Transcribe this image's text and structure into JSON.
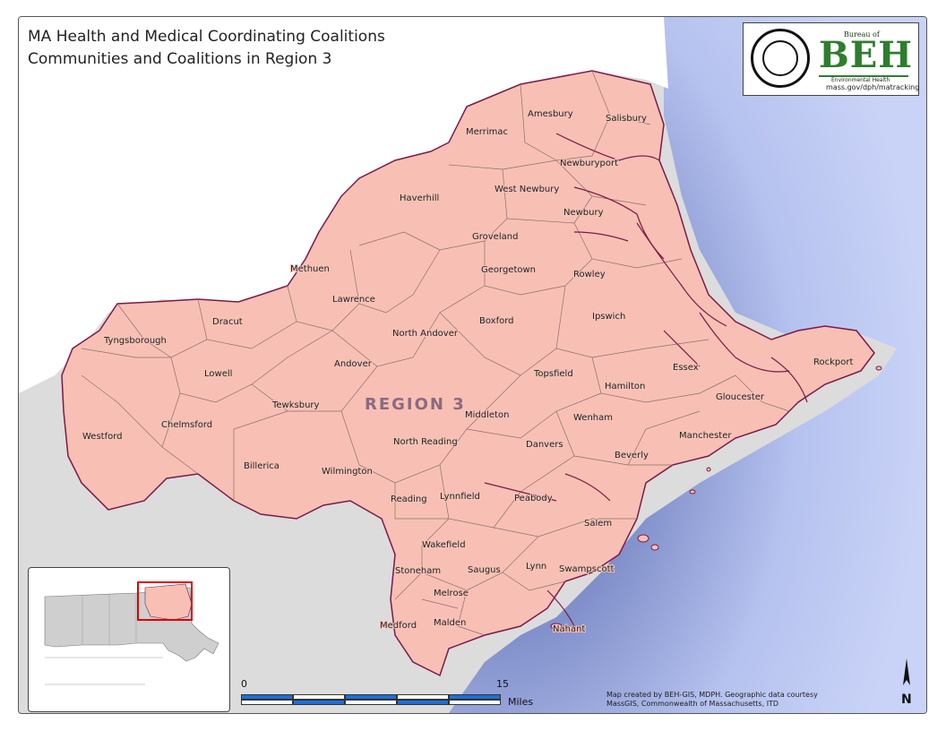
{
  "title": {
    "line1": "MA Health and Medical Coordinating Coalitions",
    "line2": "Communities and Coalitions in Region 3"
  },
  "region_label": "REGION 3",
  "towns": [
    {
      "name": "Amesbury"
    },
    {
      "name": "Salisbury"
    },
    {
      "name": "Merrimac"
    },
    {
      "name": "Newburyport"
    },
    {
      "name": "Haverhill"
    },
    {
      "name": "West Newbury"
    },
    {
      "name": "Newbury"
    },
    {
      "name": "Groveland"
    },
    {
      "name": "Methuen"
    },
    {
      "name": "Georgetown"
    },
    {
      "name": "Rowley"
    },
    {
      "name": "Lawrence"
    },
    {
      "name": "Dracut"
    },
    {
      "name": "Boxford"
    },
    {
      "name": "Ipswich"
    },
    {
      "name": "Tyngsborough"
    },
    {
      "name": "North Andover"
    },
    {
      "name": "Andover"
    },
    {
      "name": "Lowell"
    },
    {
      "name": "Rockport"
    },
    {
      "name": "Essex"
    },
    {
      "name": "Topsfield"
    },
    {
      "name": "Hamilton"
    },
    {
      "name": "Gloucester"
    },
    {
      "name": "Tewksbury"
    },
    {
      "name": "Middleton"
    },
    {
      "name": "Wenham"
    },
    {
      "name": "Chelmsford"
    },
    {
      "name": "Westford"
    },
    {
      "name": "Manchester"
    },
    {
      "name": "North Reading"
    },
    {
      "name": "Danvers"
    },
    {
      "name": "Beverly"
    },
    {
      "name": "Billerica"
    },
    {
      "name": "Wilmington"
    },
    {
      "name": "Reading"
    },
    {
      "name": "Lynnfield"
    },
    {
      "name": "Peabody"
    },
    {
      "name": "Salem"
    },
    {
      "name": "Wakefield"
    },
    {
      "name": "Stoneham"
    },
    {
      "name": "Saugus"
    },
    {
      "name": "Lynn"
    },
    {
      "name": "Swampscott"
    },
    {
      "name": "Melrose"
    },
    {
      "name": "Medford"
    },
    {
      "name": "Malden"
    },
    {
      "name": "Nahant"
    }
  ],
  "logo": {
    "beh_top": "Bureau of",
    "beh": "BEH",
    "beh_sub": "Environmental Health",
    "url": "mass.gov/dph/matracking"
  },
  "scale": {
    "zero": "0",
    "max": "15",
    "units": "Miles"
  },
  "credit": {
    "line1": "Map created by BEH-GIS, MDPH.  Geographic data courtesy",
    "line2": "MassGIS, Commonwealth of Massachusetts, ITD"
  },
  "north_label": "N",
  "colors": {
    "region_fill": "#f8c0b4",
    "outside_land": "#dcdcdc",
    "ocean": "#c6d0f4",
    "coast": "#7a1a4a",
    "inset_highlight": "#e00000"
  }
}
